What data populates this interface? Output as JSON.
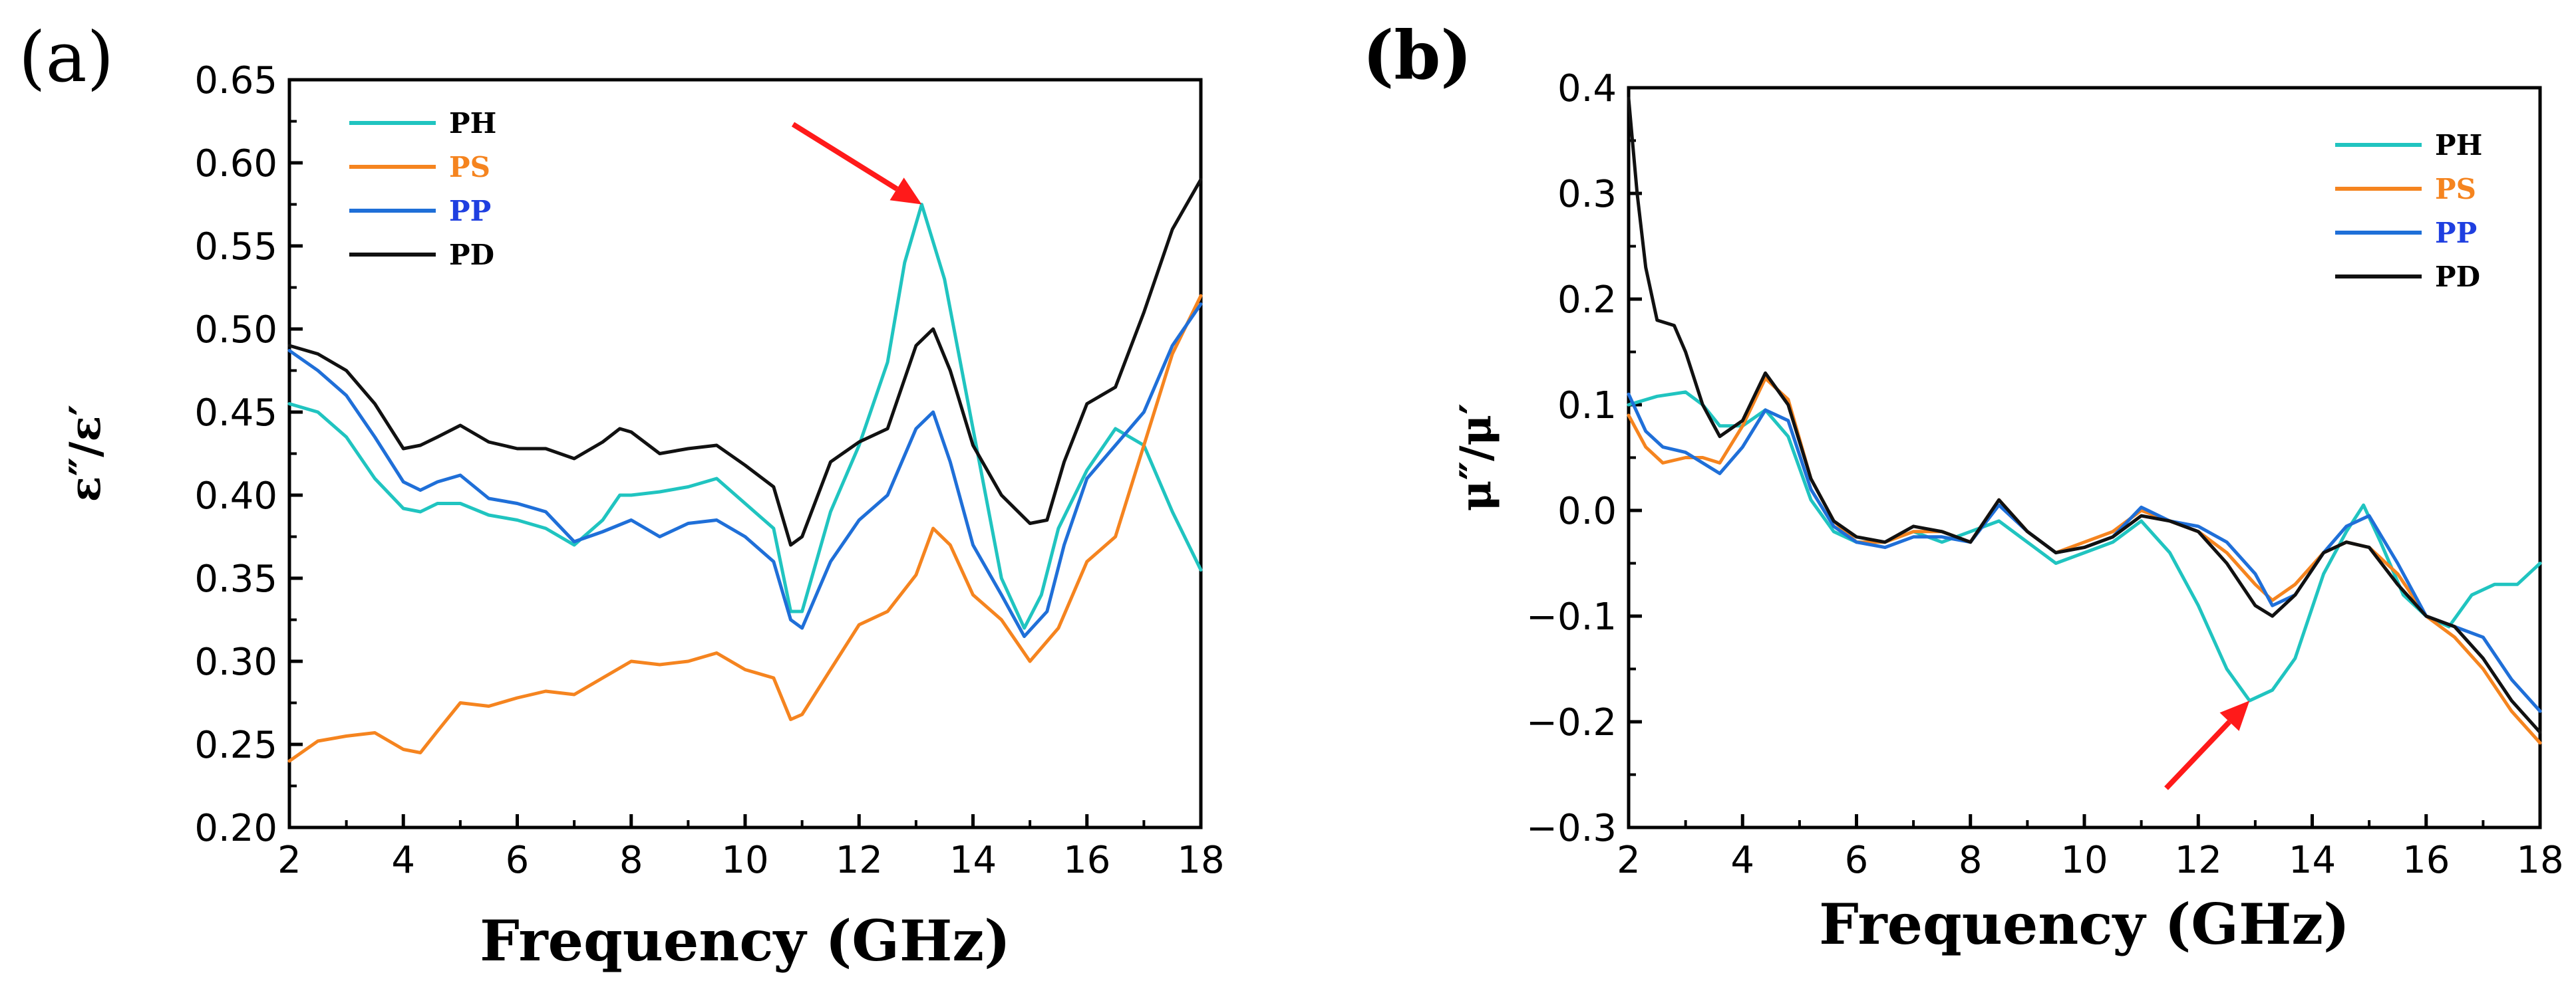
{
  "chart_data": [
    {
      "panel": "(a)",
      "type": "line",
      "xlabel": "Frequency (GHz)",
      "ylabel": "ε″/ε′",
      "xlim": [
        2,
        18
      ],
      "ylim": [
        0.2,
        0.65
      ],
      "xticks": [
        "2",
        "4",
        "6",
        "8",
        "10",
        "12",
        "14",
        "16",
        "18"
      ],
      "yticks": [
        "0.20",
        "0.25",
        "0.30",
        "0.35",
        "0.40",
        "0.45",
        "0.50",
        "0.55",
        "0.60",
        "0.65"
      ],
      "legend_position": "top-left",
      "annotation": {
        "type": "arrow",
        "color": "#ff1a1a",
        "points_to": [
          13.1,
          0.575
        ]
      },
      "series": [
        {
          "name": "PH",
          "color": "#20c4c0",
          "x": [
            2,
            2.5,
            3,
            3.5,
            4,
            4.3,
            4.6,
            5,
            5.5,
            6,
            6.5,
            7,
            7.5,
            7.8,
            8,
            8.5,
            9,
            9.5,
            10,
            10.5,
            10.8,
            11,
            11.5,
            12,
            12.5,
            12.8,
            13.1,
            13.5,
            14,
            14.5,
            14.9,
            15.2,
            15.5,
            16,
            16.5,
            17,
            17.5,
            18
          ],
          "values": [
            0.455,
            0.45,
            0.435,
            0.41,
            0.392,
            0.39,
            0.395,
            0.395,
            0.388,
            0.385,
            0.38,
            0.37,
            0.385,
            0.4,
            0.4,
            0.402,
            0.405,
            0.41,
            0.395,
            0.38,
            0.33,
            0.33,
            0.39,
            0.43,
            0.48,
            0.54,
            0.575,
            0.53,
            0.44,
            0.35,
            0.32,
            0.34,
            0.38,
            0.415,
            0.44,
            0.43,
            0.39,
            0.355
          ]
        },
        {
          "name": "PS",
          "color": "#f5841f",
          "x": [
            2,
            2.5,
            3,
            3.5,
            4,
            4.3,
            4.6,
            5,
            5.5,
            6,
            6.5,
            7,
            7.5,
            8,
            8.5,
            9,
            9.5,
            10,
            10.5,
            10.8,
            11,
            11.5,
            12,
            12.5,
            13,
            13.3,
            13.6,
            14,
            14.5,
            15,
            15.5,
            16,
            16.5,
            17,
            17.5,
            18
          ],
          "values": [
            0.24,
            0.252,
            0.255,
            0.257,
            0.247,
            0.245,
            0.258,
            0.275,
            0.273,
            0.278,
            0.282,
            0.28,
            0.29,
            0.3,
            0.298,
            0.3,
            0.305,
            0.295,
            0.29,
            0.265,
            0.268,
            0.295,
            0.322,
            0.33,
            0.352,
            0.38,
            0.37,
            0.34,
            0.325,
            0.3,
            0.32,
            0.36,
            0.375,
            0.43,
            0.485,
            0.52
          ]
        },
        {
          "name": "PP",
          "color": "#1f6fd8",
          "x": [
            2,
            2.5,
            3,
            3.5,
            4,
            4.3,
            4.6,
            5,
            5.5,
            6,
            6.5,
            7,
            7.5,
            8,
            8.5,
            9,
            9.5,
            10,
            10.5,
            10.8,
            11,
            11.5,
            12,
            12.5,
            13,
            13.3,
            13.6,
            14,
            14.5,
            14.9,
            15.3,
            15.6,
            16,
            16.5,
            17,
            17.5,
            18
          ],
          "values": [
            0.487,
            0.475,
            0.46,
            0.435,
            0.408,
            0.403,
            0.408,
            0.412,
            0.398,
            0.395,
            0.39,
            0.372,
            0.378,
            0.385,
            0.375,
            0.383,
            0.385,
            0.375,
            0.36,
            0.325,
            0.32,
            0.36,
            0.385,
            0.4,
            0.44,
            0.45,
            0.42,
            0.37,
            0.34,
            0.315,
            0.33,
            0.37,
            0.41,
            0.43,
            0.45,
            0.49,
            0.515
          ]
        },
        {
          "name": "PD",
          "color": "#111111",
          "x": [
            2,
            2.5,
            3,
            3.5,
            4,
            4.3,
            4.6,
            5,
            5.5,
            6,
            6.5,
            7,
            7.5,
            7.8,
            8,
            8.5,
            9,
            9.5,
            10,
            10.5,
            10.8,
            11,
            11.5,
            12,
            12.5,
            13,
            13.3,
            13.6,
            14,
            14.5,
            15,
            15.3,
            15.6,
            16,
            16.5,
            17,
            17.5,
            18
          ],
          "values": [
            0.49,
            0.485,
            0.475,
            0.455,
            0.428,
            0.43,
            0.435,
            0.442,
            0.432,
            0.428,
            0.428,
            0.422,
            0.432,
            0.44,
            0.438,
            0.425,
            0.428,
            0.43,
            0.418,
            0.405,
            0.37,
            0.375,
            0.42,
            0.432,
            0.44,
            0.49,
            0.5,
            0.475,
            0.43,
            0.4,
            0.383,
            0.385,
            0.42,
            0.455,
            0.465,
            0.51,
            0.56,
            0.59
          ]
        }
      ]
    },
    {
      "panel": "(b)",
      "type": "line",
      "xlabel": "Frequency (GHz)",
      "ylabel": "μ″/μ′",
      "xlim": [
        2,
        18
      ],
      "ylim": [
        -0.3,
        0.4
      ],
      "xticks": [
        "2",
        "4",
        "6",
        "8",
        "10",
        "12",
        "14",
        "16",
        "18"
      ],
      "yticks": [
        "−0.3",
        "−0.2",
        "−0.1",
        "0.0",
        "0.1",
        "0.2",
        "0.3",
        "0.4"
      ],
      "legend_position": "top-right",
      "annotation": {
        "type": "arrow",
        "color": "#ff1a1a",
        "points_to": [
          12.9,
          -0.18
        ]
      },
      "series": [
        {
          "name": "PH",
          "color": "#20c4c0",
          "x": [
            2,
            2.5,
            3,
            3.3,
            3.6,
            4,
            4.4,
            4.8,
            5.2,
            5.6,
            6,
            6.5,
            7,
            7.5,
            8,
            8.5,
            9,
            9.5,
            10,
            10.5,
            11,
            11.5,
            12,
            12.5,
            12.9,
            13.3,
            13.7,
            14.2,
            14.6,
            14.9,
            15.2,
            15.6,
            16,
            16.4,
            16.8,
            17.2,
            17.6,
            18
          ],
          "values": [
            0.1,
            0.108,
            0.112,
            0.1,
            0.08,
            0.08,
            0.095,
            0.07,
            0.01,
            -0.02,
            -0.03,
            -0.03,
            -0.02,
            -0.03,
            -0.02,
            -0.01,
            -0.03,
            -0.05,
            -0.04,
            -0.03,
            -0.01,
            -0.04,
            -0.09,
            -0.15,
            -0.18,
            -0.17,
            -0.14,
            -0.06,
            -0.02,
            0.005,
            -0.03,
            -0.08,
            -0.1,
            -0.11,
            -0.08,
            -0.07,
            -0.07,
            -0.05
          ]
        },
        {
          "name": "PS",
          "color": "#f5841f",
          "x": [
            2,
            2.3,
            2.6,
            3,
            3.3,
            3.6,
            4,
            4.4,
            4.8,
            5.2,
            5.6,
            6,
            6.5,
            7,
            7.5,
            8,
            8.5,
            9,
            9.5,
            10,
            10.5,
            11,
            11.5,
            12,
            12.5,
            13,
            13.3,
            13.7,
            14.2,
            14.6,
            15,
            15.5,
            16,
            16.5,
            17,
            17.5,
            18
          ],
          "values": [
            0.09,
            0.06,
            0.045,
            0.05,
            0.05,
            0.045,
            0.08,
            0.125,
            0.105,
            0.03,
            -0.01,
            -0.03,
            -0.03,
            -0.02,
            -0.02,
            -0.03,
            0.01,
            -0.02,
            -0.04,
            -0.03,
            -0.02,
            0.0,
            -0.01,
            -0.02,
            -0.04,
            -0.07,
            -0.085,
            -0.07,
            -0.04,
            -0.03,
            -0.035,
            -0.06,
            -0.1,
            -0.12,
            -0.15,
            -0.19,
            -0.22
          ]
        },
        {
          "name": "PP",
          "color": "#1f6fd8",
          "x": [
            2,
            2.3,
            2.6,
            3,
            3.3,
            3.6,
            4,
            4.4,
            4.8,
            5.2,
            5.6,
            6,
            6.5,
            7,
            7.5,
            8,
            8.5,
            9,
            9.5,
            10,
            10.5,
            11,
            11.5,
            12,
            12.5,
            13,
            13.3,
            13.7,
            14.2,
            14.6,
            15,
            15.5,
            16,
            16.5,
            17,
            17.5,
            18
          ],
          "values": [
            0.11,
            0.075,
            0.06,
            0.055,
            0.045,
            0.035,
            0.06,
            0.095,
            0.085,
            0.02,
            -0.015,
            -0.03,
            -0.035,
            -0.025,
            -0.025,
            -0.03,
            0.005,
            -0.02,
            -0.04,
            -0.035,
            -0.025,
            0.003,
            -0.01,
            -0.015,
            -0.03,
            -0.06,
            -0.09,
            -0.08,
            -0.04,
            -0.015,
            -0.005,
            -0.05,
            -0.1,
            -0.11,
            -0.12,
            -0.16,
            -0.19
          ]
        },
        {
          "name": "PD",
          "color": "#111111",
          "x": [
            2,
            2.15,
            2.3,
            2.5,
            2.8,
            3,
            3.3,
            3.6,
            4,
            4.4,
            4.8,
            5.2,
            5.6,
            6,
            6.5,
            7,
            7.5,
            8,
            8.5,
            9,
            9.5,
            10,
            10.5,
            11,
            11.5,
            12,
            12.5,
            13,
            13.3,
            13.7,
            14.2,
            14.6,
            15,
            15.5,
            16,
            16.5,
            17,
            17.5,
            18
          ],
          "values": [
            0.39,
            0.3,
            0.23,
            0.18,
            0.175,
            0.15,
            0.1,
            0.07,
            0.085,
            0.13,
            0.1,
            0.03,
            -0.01,
            -0.025,
            -0.03,
            -0.015,
            -0.02,
            -0.03,
            0.01,
            -0.02,
            -0.04,
            -0.035,
            -0.025,
            -0.005,
            -0.01,
            -0.02,
            -0.05,
            -0.09,
            -0.1,
            -0.08,
            -0.04,
            -0.03,
            -0.035,
            -0.07,
            -0.1,
            -0.11,
            -0.14,
            -0.18,
            -0.21
          ]
        }
      ]
    }
  ]
}
